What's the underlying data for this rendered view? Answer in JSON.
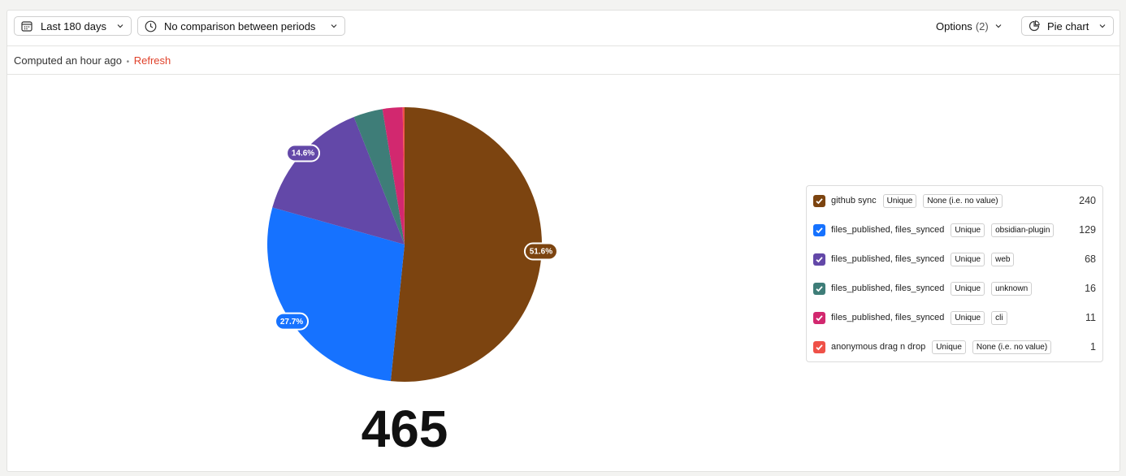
{
  "toolbar": {
    "date_range": "Last 180 days",
    "comparison": "No comparison between periods",
    "options": "Options",
    "options_count": "(2)",
    "chart_type": "Pie chart"
  },
  "status": {
    "computed": "Computed an hour ago",
    "separator": "•",
    "refresh": "Refresh"
  },
  "chart_data": {
    "type": "pie",
    "categories": [
      "github sync",
      "files_published, files_synced",
      "files_published, files_synced",
      "files_published, files_synced",
      "files_published, files_synced",
      "anonymous drag n drop"
    ],
    "breakdowns": [
      [
        "Unique",
        "None (i.e. no value)"
      ],
      [
        "Unique",
        "obsidian-plugin"
      ],
      [
        "Unique",
        "web"
      ],
      [
        "Unique",
        "unknown"
      ],
      [
        "Unique",
        "cli"
      ],
      [
        "Unique",
        "None (i.e. no value)"
      ]
    ],
    "values": [
      240,
      129,
      68,
      16,
      11,
      1
    ],
    "value_labels": [
      "51.6%",
      "27.7%",
      "14.6%",
      null,
      null,
      null
    ],
    "colors": [
      "#7c4410",
      "#1672ff",
      "#6348a8",
      "#3e7d78",
      "#d2286f",
      "#ef5148"
    ],
    "total": 465
  }
}
